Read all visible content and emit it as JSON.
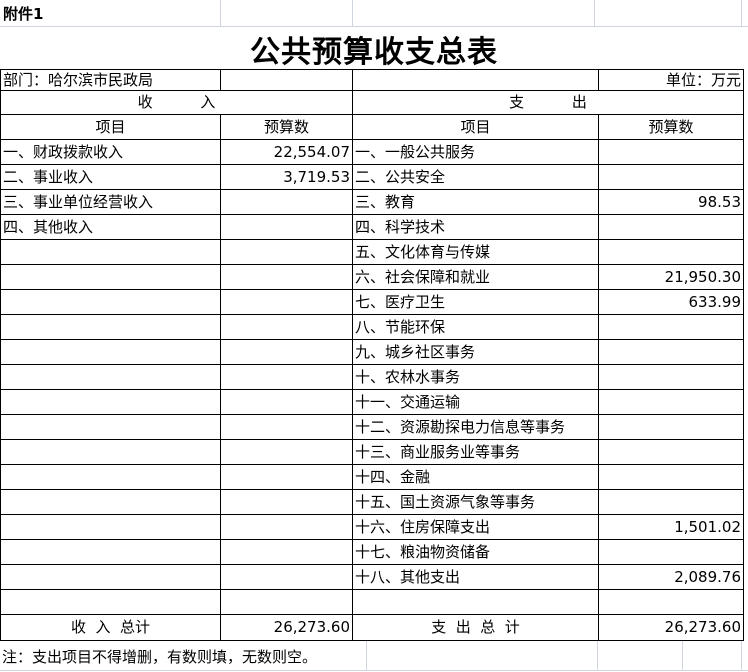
{
  "page": {
    "attachment": "附件1",
    "title": "公共预算收支总表",
    "department": "部门：哈尔滨市民政局",
    "unit": "单位：万元",
    "note": "注：支出项目不得增删，有数则填，无数则空。"
  },
  "table": {
    "revenue_header": "收          入",
    "expenditure_header": "支          出",
    "item_header": "项目",
    "budget_header": "预算数",
    "rows": [
      {
        "rev_item": "一、财政拨款收入",
        "rev_value": "22,554.07",
        "exp_item": "一、一般公共服务",
        "exp_value": ""
      },
      {
        "rev_item": "二、事业收入",
        "rev_value": "3,719.53",
        "exp_item": "二、公共安全",
        "exp_value": ""
      },
      {
        "rev_item": "三、事业单位经营收入",
        "rev_value": "",
        "exp_item": "三、教育",
        "exp_value": "98.53"
      },
      {
        "rev_item": "四、其他收入",
        "rev_value": "",
        "exp_item": "四、科学技术",
        "exp_value": ""
      },
      {
        "rev_item": "",
        "rev_value": "",
        "exp_item": "五、文化体育与传媒",
        "exp_value": ""
      },
      {
        "rev_item": "",
        "rev_value": "",
        "exp_item": "六、社会保障和就业",
        "exp_value": "21,950.30"
      },
      {
        "rev_item": "",
        "rev_value": "",
        "exp_item": "七、医疗卫生",
        "exp_value": "633.99"
      },
      {
        "rev_item": "",
        "rev_value": "",
        "exp_item": "八、节能环保",
        "exp_value": ""
      },
      {
        "rev_item": "",
        "rev_value": "",
        "exp_item": "九、城乡社区事务",
        "exp_value": ""
      },
      {
        "rev_item": "",
        "rev_value": "",
        "exp_item": "十、农林水事务",
        "exp_value": ""
      },
      {
        "rev_item": "",
        "rev_value": "",
        "exp_item": "十一、交通运输",
        "exp_value": ""
      },
      {
        "rev_item": "",
        "rev_value": "",
        "exp_item": "十二、资源勘探电力信息等事务",
        "exp_value": ""
      },
      {
        "rev_item": "",
        "rev_value": "",
        "exp_item": "十三、商业服务业等事务",
        "exp_value": ""
      },
      {
        "rev_item": "",
        "rev_value": "",
        "exp_item": "十四、金融",
        "exp_value": ""
      },
      {
        "rev_item": "",
        "rev_value": "",
        "exp_item": "十五、国土资源气象等事务",
        "exp_value": ""
      },
      {
        "rev_item": "",
        "rev_value": "",
        "exp_item": "十六、住房保障支出",
        "exp_value": "1,501.02"
      },
      {
        "rev_item": "",
        "rev_value": "",
        "exp_item": "十七、粮油物资储备",
        "exp_value": ""
      },
      {
        "rev_item": "",
        "rev_value": "",
        "exp_item": "十八、其他支出",
        "exp_value": "2,089.76"
      },
      {
        "rev_item": "",
        "rev_value": "",
        "exp_item": "",
        "exp_value": ""
      }
    ],
    "totals": {
      "revenue_label": "收  入  总计",
      "revenue_value": "26,273.60",
      "expenditure_label": "支  出  总  计",
      "expenditure_value": "26,273.60"
    }
  },
  "colors": {
    "border": "#000000",
    "gridline": "#cfd6e2",
    "text": "#000000",
    "background": "#ffffff"
  }
}
